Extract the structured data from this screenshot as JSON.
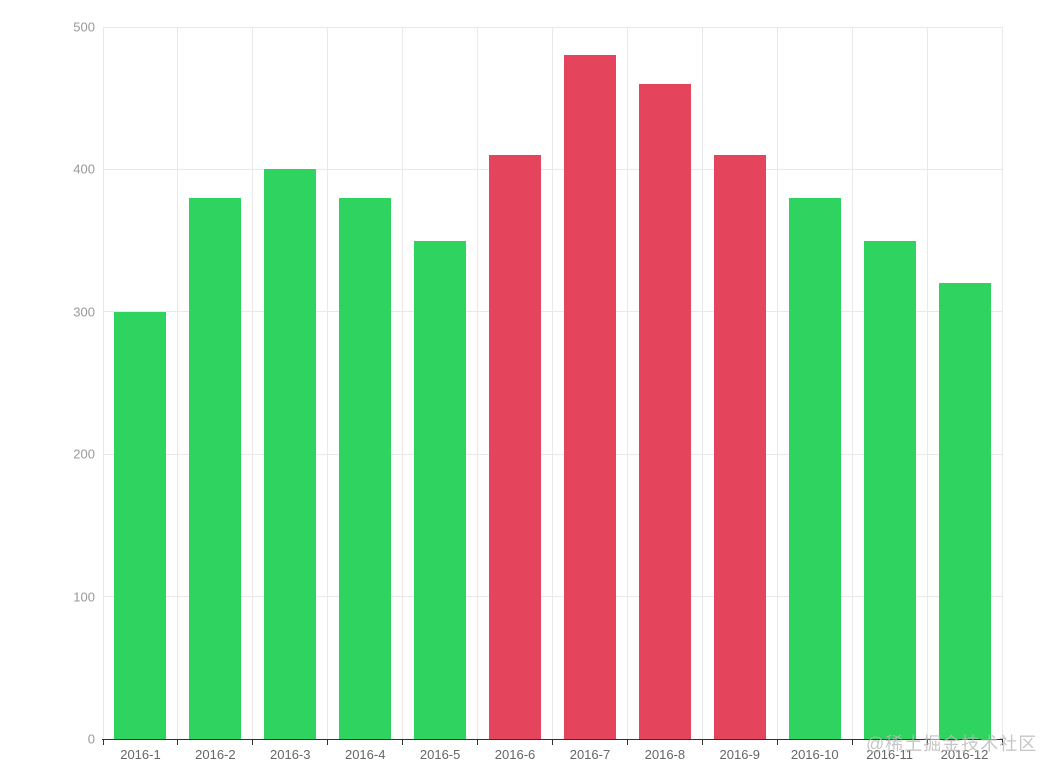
{
  "chart_data": {
    "type": "bar",
    "title": "",
    "xlabel": "",
    "ylabel": "",
    "categories": [
      "2016-1",
      "2016-2",
      "2016-3",
      "2016-4",
      "2016-5",
      "2016-6",
      "2016-7",
      "2016-8",
      "2016-9",
      "2016-10",
      "2016-11",
      "2016-12"
    ],
    "values": [
      300,
      380,
      400,
      380,
      350,
      410,
      480,
      460,
      410,
      380,
      350,
      320
    ],
    "bar_color_names": [
      "green",
      "green",
      "green",
      "green",
      "green",
      "red",
      "red",
      "red",
      "red",
      "green",
      "green",
      "green"
    ],
    "palette": {
      "green": "#2ed360",
      "red": "#e4455c"
    },
    "ylim": [
      0,
      500
    ],
    "yticks": [
      "0",
      "100",
      "200",
      "300",
      "400",
      "500"
    ],
    "grid": true,
    "legend": false,
    "colors": {
      "grid_line": "#e9e9e9",
      "axis_line": "#333333",
      "y_tick_label": "#999999",
      "x_tick_label": "#666666",
      "background": "#ffffff"
    }
  },
  "watermark": {
    "text": "@稀土掘金技术社区",
    "color": "#b9b9b9"
  }
}
